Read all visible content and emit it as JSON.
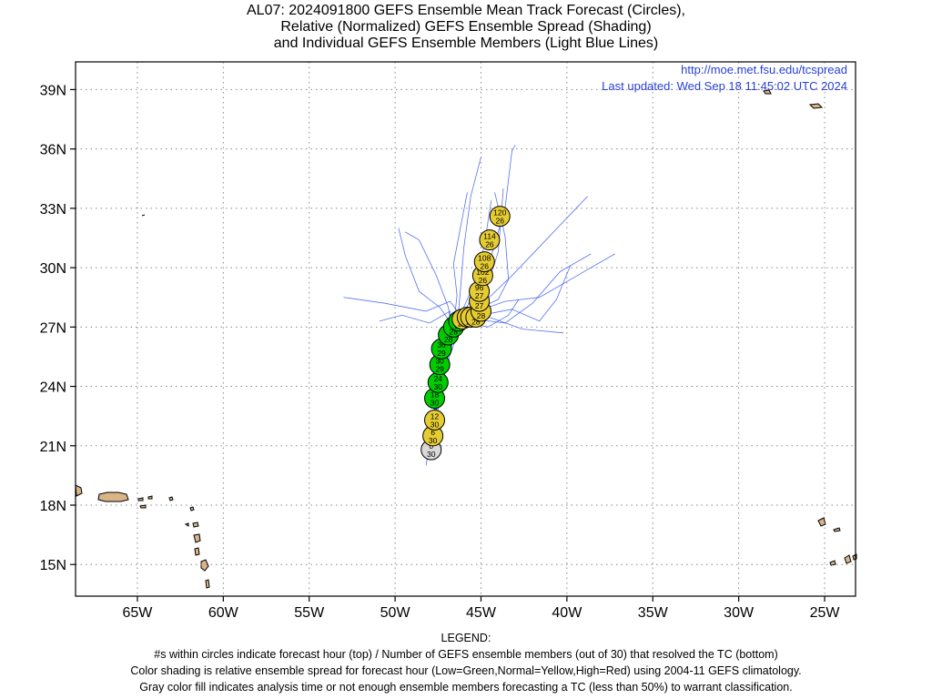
{
  "titles": {
    "line1": "AL07: 2024091800 GEFS Ensemble Mean Track Forecast (Circles),",
    "line2": "Relative (Normalized) GEFS Ensemble Spread (Shading)",
    "line3": "and Individual GEFS Ensemble Members (Light Blue Lines)"
  },
  "header_links": {
    "url": "http://moe.met.fsu.edu/tcspread",
    "updated": "Last updated: Wed Sep 18 11:45:02 UTC 2024"
  },
  "axes": {
    "lat_labels": [
      "39N",
      "36N",
      "33N",
      "30N",
      "27N",
      "24N",
      "21N",
      "18N",
      "15N"
    ],
    "lon_labels": [
      "65W",
      "60W",
      "55W",
      "50W",
      "45W",
      "40W",
      "35W",
      "30W",
      "25W"
    ]
  },
  "legend": {
    "heading": "LEGEND:",
    "line1": "#s within circles indicate forecast hour (top) / Number of GEFS ensemble members (out of 30) that resolved the TC (bottom)",
    "line2": "Color shading is relative ensemble spread for forecast hour (Low=Green,Normal=Yellow,High=Red) using 2004-11 GEFS climatology.",
    "line3": "Gray color fill indicates analysis time or not enough ensemble members forecasting a TC (less than 50%) to warrant classification."
  },
  "colors": {
    "low": "#00cc00",
    "normal": "#e6cc33",
    "gray": "#d9d9d9",
    "member_track": "#3b5bef",
    "land": "#d9b487",
    "grid": "#888888"
  },
  "chart_data": {
    "type": "map",
    "lon_range": [
      -68.6,
      -23.2
    ],
    "lat_range": [
      13.4,
      40.4
    ],
    "mean_track": [
      {
        "hr": "0",
        "members": "30",
        "lat": 20.8,
        "lon": -47.9,
        "spread": "gray"
      },
      {
        "hr": "6",
        "members": "30",
        "lat": 21.5,
        "lon": -47.8,
        "spread": "normal"
      },
      {
        "hr": "12",
        "members": "30",
        "lat": 22.3,
        "lon": -47.7,
        "spread": "normal"
      },
      {
        "hr": "18",
        "members": "30",
        "lat": 23.4,
        "lon": -47.7,
        "spread": "low"
      },
      {
        "hr": "24",
        "members": "30",
        "lat": 24.2,
        "lon": -47.5,
        "spread": "low"
      },
      {
        "hr": "30",
        "members": "29",
        "lat": 25.1,
        "lon": -47.4,
        "spread": "low"
      },
      {
        "hr": "36",
        "members": "29",
        "lat": 25.9,
        "lon": -47.3,
        "spread": "low"
      },
      {
        "hr": "42",
        "members": "28",
        "lat": 26.6,
        "lon": -46.9,
        "spread": "low"
      },
      {
        "hr": "48",
        "members": "28",
        "lat": 27.0,
        "lon": -46.6,
        "spread": "low"
      },
      {
        "hr": "54",
        "members": "28",
        "lat": 27.3,
        "lon": -46.3,
        "spread": "low"
      },
      {
        "hr": "60",
        "members": "28",
        "lat": 27.4,
        "lon": -46.1,
        "spread": "normal"
      },
      {
        "hr": "66",
        "members": "28",
        "lat": 27.5,
        "lon": -45.8,
        "spread": "normal"
      },
      {
        "hr": "72",
        "members": "28",
        "lat": 27.5,
        "lon": -45.6,
        "spread": "normal"
      },
      {
        "hr": "78",
        "members": "28",
        "lat": 27.5,
        "lon": -45.3,
        "spread": "normal"
      },
      {
        "hr": "84",
        "members": "28",
        "lat": 27.8,
        "lon": -45.0,
        "spread": "normal"
      },
      {
        "hr": "90",
        "members": "27",
        "lat": 28.3,
        "lon": -45.1,
        "spread": "normal"
      },
      {
        "hr": "96",
        "members": "27",
        "lat": 28.8,
        "lon": -45.1,
        "spread": "normal"
      },
      {
        "hr": "102",
        "members": "26",
        "lat": 29.6,
        "lon": -44.9,
        "spread": "normal"
      },
      {
        "hr": "108",
        "members": "26",
        "lat": 30.3,
        "lon": -44.8,
        "spread": "normal"
      },
      {
        "hr": "114",
        "members": "26",
        "lat": 31.4,
        "lon": -44.5,
        "spread": "normal"
      },
      {
        "hr": "120",
        "members": "26",
        "lat": 32.6,
        "lon": -43.9,
        "spread": "normal"
      }
    ],
    "member_tracks": [
      [
        [
          -48.2,
          20.0
        ],
        [
          -47.9,
          21.8
        ],
        [
          -47.6,
          23.6
        ],
        [
          -47.2,
          25.2
        ],
        [
          -46.6,
          26.6
        ],
        [
          -45.8,
          27.4
        ],
        [
          -44.8,
          28.6
        ],
        [
          -44.0,
          30.8
        ],
        [
          -43.7,
          34.0
        ]
      ],
      [
        [
          -48.0,
          20.3
        ],
        [
          -47.8,
          22.0
        ],
        [
          -47.5,
          23.8
        ],
        [
          -47.0,
          25.4
        ],
        [
          -46.4,
          26.8
        ],
        [
          -45.6,
          27.8
        ],
        [
          -44.2,
          27.4
        ],
        [
          -42.6,
          26.9
        ],
        [
          -40.2,
          26.7
        ]
      ],
      [
        [
          -47.9,
          20.5
        ],
        [
          -47.7,
          22.3
        ],
        [
          -47.4,
          24.0
        ],
        [
          -47.0,
          25.6
        ],
        [
          -46.3,
          27.0
        ],
        [
          -45.2,
          27.8
        ],
        [
          -43.6,
          28.3
        ],
        [
          -41.6,
          28.5
        ],
        [
          -39.4,
          29.6
        ],
        [
          -37.2,
          30.7
        ]
      ],
      [
        [
          -48.1,
          20.4
        ],
        [
          -47.8,
          22.1
        ],
        [
          -47.5,
          23.9
        ],
        [
          -47.1,
          25.5
        ],
        [
          -46.5,
          26.9
        ],
        [
          -46.2,
          27.6
        ],
        [
          -46.8,
          28.3
        ],
        [
          -48.2,
          27.8
        ],
        [
          -50.6,
          28.2
        ],
        [
          -53.0,
          28.5
        ]
      ],
      [
        [
          -47.9,
          20.6
        ],
        [
          -47.6,
          22.4
        ],
        [
          -47.3,
          24.1
        ],
        [
          -46.9,
          25.7
        ],
        [
          -46.4,
          27.0
        ],
        [
          -46.2,
          28.8
        ],
        [
          -46.0,
          31.0
        ],
        [
          -45.6,
          33.6
        ],
        [
          -45.0,
          35.6
        ]
      ],
      [
        [
          -48.0,
          20.5
        ],
        [
          -47.7,
          22.3
        ],
        [
          -47.4,
          24.0
        ],
        [
          -47.0,
          25.6
        ],
        [
          -46.4,
          27.0
        ],
        [
          -45.6,
          28.4
        ],
        [
          -44.6,
          30.0
        ],
        [
          -43.6,
          33.0
        ],
        [
          -43.2,
          35.9
        ],
        [
          -43.0,
          36.2
        ]
      ],
      [
        [
          -48.0,
          20.6
        ],
        [
          -47.7,
          22.4
        ],
        [
          -47.4,
          24.1
        ],
        [
          -47.0,
          25.7
        ],
        [
          -46.6,
          27.0
        ],
        [
          -47.4,
          28.0
        ],
        [
          -48.6,
          28.8
        ],
        [
          -49.4,
          30.6
        ],
        [
          -49.8,
          32.0
        ]
      ],
      [
        [
          -47.9,
          20.6
        ],
        [
          -47.6,
          22.3
        ],
        [
          -47.3,
          24.0
        ],
        [
          -46.9,
          25.6
        ],
        [
          -46.3,
          27.0
        ],
        [
          -45.0,
          28.1
        ],
        [
          -43.2,
          29.6
        ],
        [
          -41.0,
          31.6
        ],
        [
          -38.8,
          33.6
        ]
      ],
      [
        [
          -48.0,
          20.4
        ],
        [
          -47.7,
          22.2
        ],
        [
          -47.4,
          23.9
        ],
        [
          -47.0,
          25.5
        ],
        [
          -46.5,
          26.9
        ],
        [
          -45.4,
          27.4
        ],
        [
          -43.6,
          27.2
        ],
        [
          -42.0,
          28.2
        ],
        [
          -40.4,
          29.8
        ],
        [
          -38.6,
          30.7
        ]
      ],
      [
        [
          -48.0,
          20.5
        ],
        [
          -47.8,
          22.2
        ],
        [
          -47.5,
          24.0
        ],
        [
          -47.1,
          25.6
        ],
        [
          -46.6,
          27.0
        ],
        [
          -46.4,
          28.6
        ],
        [
          -46.6,
          30.2
        ],
        [
          -46.2,
          32.0
        ],
        [
          -45.8,
          33.8
        ]
      ],
      [
        [
          -48.1,
          20.3
        ],
        [
          -47.8,
          22.1
        ],
        [
          -47.6,
          23.8
        ],
        [
          -47.2,
          25.4
        ],
        [
          -46.7,
          26.8
        ],
        [
          -46.9,
          28.0
        ],
        [
          -47.6,
          29.6
        ],
        [
          -48.6,
          31.4
        ],
        [
          -49.4,
          31.8
        ]
      ],
      [
        [
          -48.0,
          20.6
        ],
        [
          -47.7,
          22.4
        ],
        [
          -47.4,
          24.2
        ],
        [
          -47.0,
          25.8
        ],
        [
          -46.4,
          27.1
        ],
        [
          -45.2,
          27.9
        ],
        [
          -44.0,
          28.4
        ],
        [
          -43.4,
          29.4
        ],
        [
          -43.6,
          31.6
        ],
        [
          -44.2,
          33.8
        ]
      ],
      [
        [
          -47.9,
          20.5
        ],
        [
          -47.6,
          22.3
        ],
        [
          -47.3,
          24.1
        ],
        [
          -46.8,
          25.6
        ],
        [
          -46.2,
          27.0
        ],
        [
          -45.0,
          27.6
        ],
        [
          -43.2,
          27.9
        ],
        [
          -41.6,
          27.3
        ],
        [
          -40.6,
          28.4
        ],
        [
          -39.8,
          30.1
        ]
      ],
      [
        [
          -48.0,
          20.4
        ],
        [
          -47.8,
          22.2
        ],
        [
          -47.5,
          23.9
        ],
        [
          -47.1,
          25.5
        ],
        [
          -46.6,
          26.9
        ],
        [
          -45.9,
          28.2
        ],
        [
          -45.2,
          29.6
        ],
        [
          -44.8,
          31.2
        ],
        [
          -44.4,
          33.4
        ]
      ],
      [
        [
          -48.1,
          20.5
        ],
        [
          -47.8,
          22.2
        ],
        [
          -47.5,
          24.0
        ],
        [
          -47.1,
          25.6
        ],
        [
          -46.7,
          26.9
        ],
        [
          -46.8,
          27.8
        ],
        [
          -48.0,
          27.2
        ],
        [
          -49.6,
          27.6
        ],
        [
          -50.9,
          27.3
        ]
      ],
      [
        [
          -48.0,
          20.5
        ],
        [
          -47.7,
          22.3
        ],
        [
          -47.4,
          24.0
        ],
        [
          -47.0,
          25.6
        ],
        [
          -46.4,
          27.0
        ],
        [
          -45.6,
          27.2
        ],
        [
          -44.6,
          27.0
        ],
        [
          -43.4,
          27.6
        ],
        [
          -42.8,
          28.4
        ]
      ]
    ],
    "land_label": "none"
  }
}
